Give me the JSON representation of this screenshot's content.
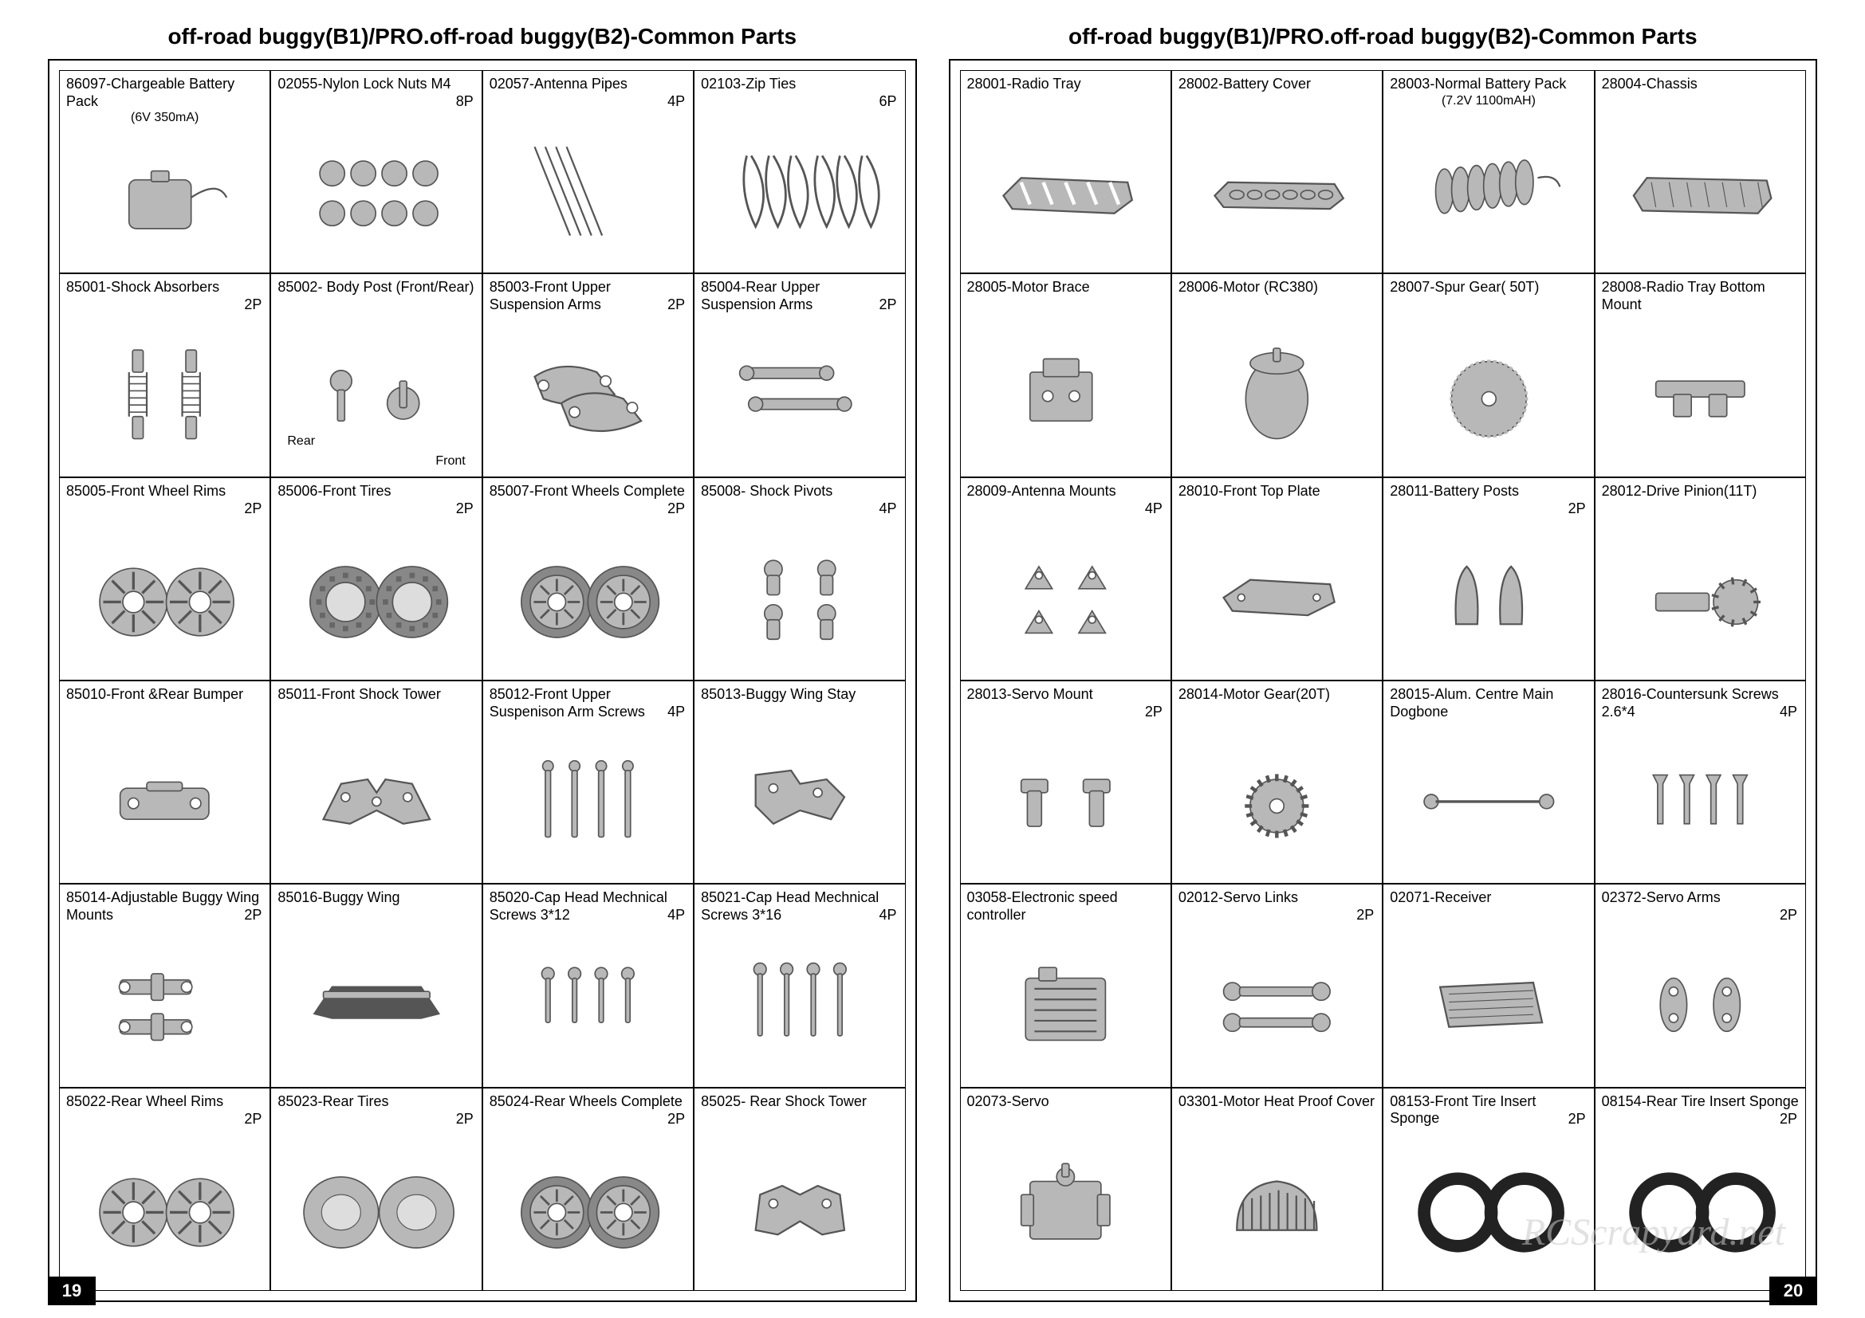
{
  "title_left": "off-road buggy(B1)/PRO.off-road buggy(B2)-Common Parts",
  "title_right": "off-road buggy(B1)/PRO.off-road buggy(B2)-Common Parts",
  "pagenum_left": "19",
  "pagenum_right": "20",
  "watermark": "RCScrapyard.net",
  "colors": {
    "border": "#000000",
    "background": "#ffffff",
    "text": "#000000",
    "part_fill": "#b8b8b8",
    "part_stroke": "#555555",
    "watermark": "rgba(200,200,200,0.55)"
  },
  "layout": {
    "left_cols": 4,
    "left_rows": 6,
    "right_cols": 4,
    "right_rows": 6,
    "cell_header_fontsize": 18,
    "title_fontsize": 28
  },
  "left_parts": [
    {
      "code": "86097",
      "name": "Chargeable Battery Pack",
      "sub": "(6V 350mA)",
      "qty": "",
      "icon": "battery-pack"
    },
    {
      "code": "02055",
      "name": "Nylon Lock Nuts M4",
      "sub": "",
      "qty": "8P",
      "icon": "lock-nuts"
    },
    {
      "code": "02057",
      "name": "Antenna Pipes",
      "sub": "",
      "qty": "4P",
      "icon": "antenna-pipes"
    },
    {
      "code": "02103",
      "name": "Zip Ties",
      "sub": "",
      "qty": "6P",
      "icon": "zip-ties"
    },
    {
      "code": "85001",
      "name": "Shock Absorbers",
      "sub": "",
      "qty": "2P",
      "icon": "shock-absorbers"
    },
    {
      "code": "85002",
      "name": " Body Post (Front/Rear)",
      "sub": "",
      "qty": "",
      "icon": "body-post",
      "extra1": "Rear",
      "extra2": "Front"
    },
    {
      "code": "85003",
      "name": "Front Upper Suspension Arms",
      "sub": "",
      "qty": "2P",
      "icon": "susp-arms-front"
    },
    {
      "code": "85004",
      "name": "Rear Upper Suspension Arms",
      "sub": "",
      "qty": "2P",
      "icon": "susp-arms-rear"
    },
    {
      "code": "85005",
      "name": "Front Wheel Rims",
      "sub": "",
      "qty": "2P",
      "icon": "wheel-rims"
    },
    {
      "code": "85006",
      "name": "Front Tires",
      "sub": "",
      "qty": "2P",
      "icon": "tires"
    },
    {
      "code": "85007",
      "name": "Front Wheels Complete",
      "sub": "",
      "qty": "2P",
      "icon": "wheels-complete"
    },
    {
      "code": "85008",
      "name": " Shock Pivots",
      "sub": "",
      "qty": "4P",
      "icon": "shock-pivots"
    },
    {
      "code": "85010",
      "name": "Front &Rear Bumper",
      "sub": "",
      "qty": "",
      "icon": "bumper"
    },
    {
      "code": "85011",
      "name": "Front Shock Tower",
      "sub": "",
      "qty": "",
      "icon": "shock-tower-front"
    },
    {
      "code": "85012",
      "name": "Front Upper Suspenison Arm Screws",
      "sub": "",
      "qty": "4P",
      "icon": "arm-screws"
    },
    {
      "code": "85013",
      "name": "Buggy Wing Stay",
      "sub": "",
      "qty": "",
      "icon": "wing-stay"
    },
    {
      "code": "85014",
      "name": "Adjustable Buggy Wing Mounts",
      "sub": "",
      "qty": "2P",
      "icon": "wing-mounts"
    },
    {
      "code": "85016",
      "name": "Buggy Wing",
      "sub": "",
      "qty": "",
      "icon": "buggy-wing"
    },
    {
      "code": "85020",
      "name": "Cap Head Mechnical Screws 3*12",
      "sub": "",
      "qty": "4P",
      "icon": "cap-screws-12"
    },
    {
      "code": "85021",
      "name": "Cap Head Mechnical Screws 3*16",
      "sub": "",
      "qty": "4P",
      "icon": "cap-screws-16"
    },
    {
      "code": "85022",
      "name": "Rear  Wheel Rims",
      "sub": "",
      "qty": "2P",
      "icon": "wheel-rims"
    },
    {
      "code": "85023",
      "name": "Rear  Tires",
      "sub": "",
      "qty": "2P",
      "icon": "tires-wide"
    },
    {
      "code": "85024",
      "name": "Rear Wheels Complete",
      "sub": "",
      "qty": "2P",
      "icon": "wheels-complete"
    },
    {
      "code": "85025",
      "name": " Rear Shock Tower",
      "sub": "",
      "qty": "",
      "icon": "shock-tower-rear"
    }
  ],
  "right_parts": [
    {
      "code": "28001",
      "name": "Radio Tray",
      "sub": "",
      "qty": "",
      "icon": "radio-tray"
    },
    {
      "code": "28002",
      "name": "Battery Cover",
      "sub": "",
      "qty": "",
      "icon": "battery-cover"
    },
    {
      "code": "28003",
      "name": "Normal Battery Pack",
      "sub": "(7.2V 1100mAH)",
      "qty": "",
      "icon": "battery-pack2"
    },
    {
      "code": "28004",
      "name": "Chassis",
      "sub": "",
      "qty": "",
      "icon": "chassis"
    },
    {
      "code": "28005",
      "name": "Motor Brace",
      "sub": "",
      "qty": "",
      "icon": "motor-brace"
    },
    {
      "code": "28006",
      "name": "Motor (RC380)",
      "sub": "",
      "qty": "",
      "icon": "motor"
    },
    {
      "code": "28007",
      "name": "Spur Gear( 50T)",
      "sub": "",
      "qty": "",
      "icon": "spur-gear"
    },
    {
      "code": "28008",
      "name": "Radio Tray Bottom Mount",
      "sub": "",
      "qty": "",
      "icon": "tray-mount"
    },
    {
      "code": "28009",
      "name": "Antenna Mounts",
      "sub": "",
      "qty": "4P",
      "icon": "antenna-mounts"
    },
    {
      "code": "28010",
      "name": "Front Top Plate",
      "sub": "",
      "qty": "",
      "icon": "top-plate"
    },
    {
      "code": "28011",
      "name": "Battery Posts",
      "sub": "",
      "qty": "2P",
      "icon": "battery-posts"
    },
    {
      "code": "28012",
      "name": "Drive Pinion(11T)",
      "sub": "",
      "qty": "",
      "icon": "drive-pinion"
    },
    {
      "code": "28013",
      "name": "Servo Mount",
      "sub": "",
      "qty": "2P",
      "icon": "servo-mount"
    },
    {
      "code": "28014",
      "name": "Motor Gear(20T)",
      "sub": "",
      "qty": "",
      "icon": "motor-gear"
    },
    {
      "code": "28015",
      "name": "Alum. Centre Main Dogbone",
      "sub": "",
      "qty": "",
      "icon": "dogbone"
    },
    {
      "code": "28016",
      "name": "Countersunk Screws   2.6*4",
      "sub": "",
      "qty": "4P",
      "icon": "countersunk"
    },
    {
      "code": "03058",
      "name": "Electronic speed controller",
      "sub": "",
      "qty": "",
      "icon": "esc"
    },
    {
      "code": "02012",
      "name": "Servo Links",
      "sub": "",
      "qty": "2P",
      "icon": "servo-links"
    },
    {
      "code": "02071",
      "name": "Receiver",
      "sub": "",
      "qty": "",
      "icon": "receiver"
    },
    {
      "code": "02372",
      "name": "Servo Arms",
      "sub": "",
      "qty": "2P",
      "icon": "servo-arms"
    },
    {
      "code": "02073",
      "name": "Servo",
      "sub": "",
      "qty": "",
      "icon": "servo"
    },
    {
      "code": "03301",
      "name": "Motor Heat Proof Cover",
      "sub": "",
      "qty": "",
      "icon": "heat-cover"
    },
    {
      "code": "08153",
      "name": "Front Tire Insert Sponge",
      "sub": "",
      "qty": "2P",
      "icon": "tire-insert"
    },
    {
      "code": "08154",
      "name": "Rear Tire  Insert Sponge",
      "sub": "",
      "qty": "2P",
      "icon": "tire-insert"
    }
  ]
}
